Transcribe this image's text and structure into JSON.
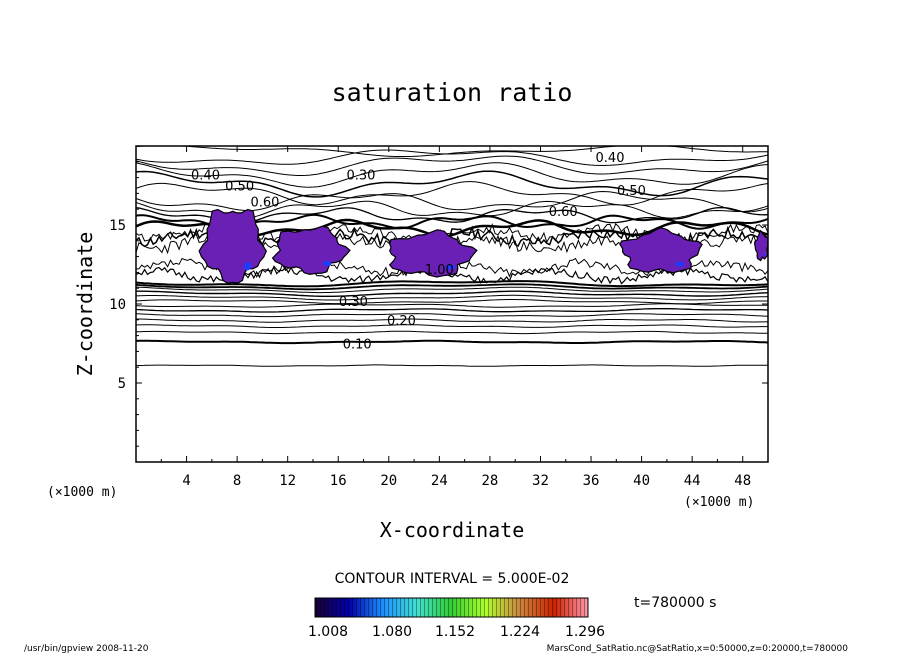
{
  "chart_data": {
    "type": "contour",
    "title": "saturation ratio",
    "xlabel": "X-coordinate",
    "ylabel": "Z-coordinate",
    "x_unit": "(×1000 m)",
    "z_unit": "(×1000 m)",
    "xlim": [
      0,
      50
    ],
    "ylim": [
      0,
      20
    ],
    "x_ticks": [
      4,
      8,
      12,
      16,
      20,
      24,
      28,
      32,
      36,
      40,
      44,
      48
    ],
    "y_ticks": [
      5,
      10,
      15
    ],
    "contour_interval_text": "CONTOUR INTERVAL = 5.000E-02",
    "time_text": "t=780000 s",
    "contour_labels": [
      {
        "text": "0.40",
        "x": 37.5,
        "z": 19.3
      },
      {
        "text": "0.40",
        "x": 5.5,
        "z": 18.2
      },
      {
        "text": "0.30",
        "x": 17.8,
        "z": 18.2
      },
      {
        "text": "0.50",
        "x": 8.2,
        "z": 17.5
      },
      {
        "text": "0.50",
        "x": 39.2,
        "z": 17.2
      },
      {
        "text": "0.60",
        "x": 10.2,
        "z": 16.5
      },
      {
        "text": "0.60",
        "x": 33.8,
        "z": 15.9
      },
      {
        "text": "1.00",
        "x": 24.0,
        "z": 12.2
      },
      {
        "text": "0.30",
        "x": 17.2,
        "z": 10.2
      },
      {
        "text": "0.20",
        "x": 21.0,
        "z": 9.0
      },
      {
        "text": "0.10",
        "x": 17.5,
        "z": 7.5
      }
    ],
    "supersaturated_regions": [
      {
        "x": [
          5.3,
          10.0
        ],
        "z": [
          11.5,
          16.0
        ]
      },
      {
        "x": [
          11.0,
          16.5
        ],
        "z": [
          12.0,
          14.8
        ]
      },
      {
        "x": [
          20.0,
          26.5
        ],
        "z": [
          11.8,
          14.5
        ]
      },
      {
        "x": [
          38.5,
          44.5
        ],
        "z": [
          12.0,
          14.6
        ]
      },
      {
        "x": [
          49.0,
          50.0
        ],
        "z": [
          12.8,
          14.5
        ]
      }
    ],
    "colorbar": {
      "min": 1.008,
      "max": 1.296,
      "tick_labels": [
        "1.008",
        "1.080",
        "1.152",
        "1.224",
        "1.296"
      ],
      "colors": [
        "#1a0033",
        "#0000aa",
        "#1e90ff",
        "#40e0d0",
        "#32cd32",
        "#adff2f",
        "#cd853f",
        "#cc2200",
        "#ff99aa"
      ]
    },
    "grid": false
  },
  "footer": {
    "left": "/usr/bin/gpview  2008-11-20",
    "right": "MarsCond_SatRatio.nc@SatRatio,x=0:50000,z=0:20000,t=780000"
  }
}
